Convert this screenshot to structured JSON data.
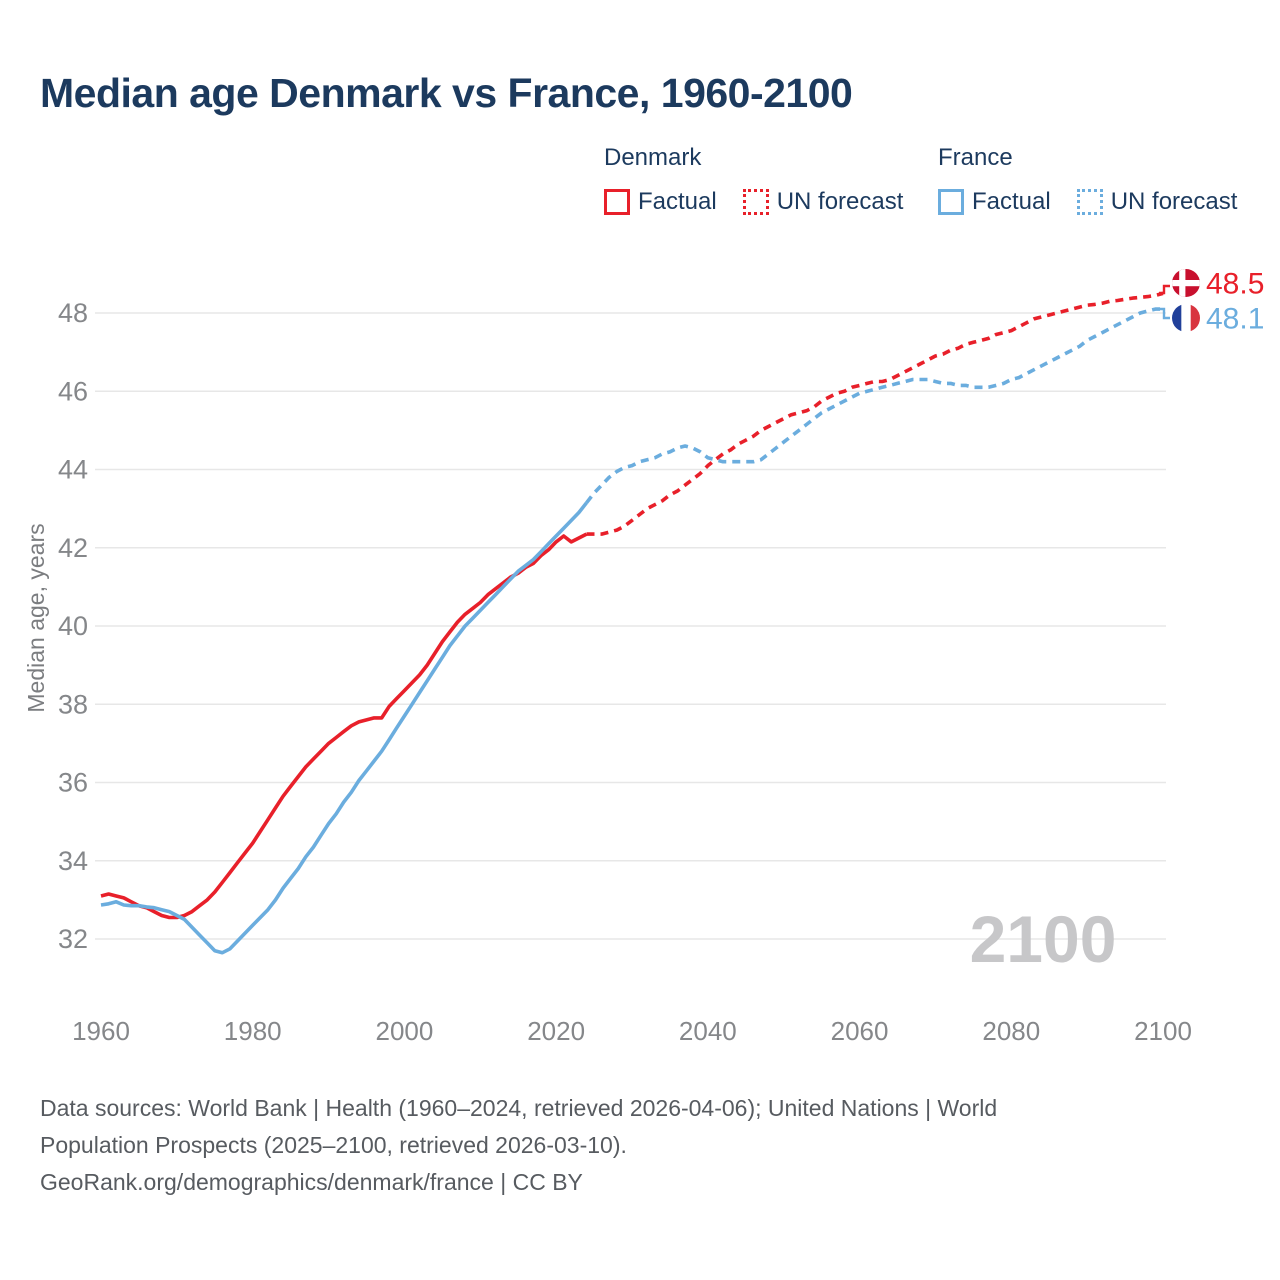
{
  "title": "Median age Denmark vs France, 1960-2100",
  "legend": {
    "groups": [
      {
        "name": "Denmark",
        "color": "#e8202a",
        "items": [
          {
            "label": "Factual",
            "style": "solid"
          },
          {
            "label": "UN forecast",
            "style": "dotted"
          }
        ]
      },
      {
        "name": "France",
        "color": "#6badde",
        "items": [
          {
            "label": "Factual",
            "style": "solid"
          },
          {
            "label": "UN forecast",
            "style": "dotted"
          }
        ]
      }
    ]
  },
  "watermark": "2100",
  "end_labels": [
    {
      "series": "Denmark",
      "value": "48.5",
      "flag": "denmark-flag"
    },
    {
      "series": "France",
      "value": "48.1",
      "flag": "france-flag"
    }
  ],
  "footer": {
    "lines": [
      "Data sources: World Bank | Health (1960–2024, retrieved 2026-04-06); United Nations | World",
      "Population Prospects (2025–2100, retrieved 2026-03-10).",
      "GeoRank.org/demographics/denmark/france | CC BY"
    ]
  },
  "colors": {
    "title_navy": "#1c3a5e",
    "denmark_red": "#e8202a",
    "france_blue": "#6badde",
    "grid_gray": "#e7e7e7",
    "tick_gray": "#85878a",
    "axis_title_gray": "#7b7d80",
    "footer_gray": "#575b60",
    "watermark_gray": "#c7c7c9",
    "flag_dk_red": "#c8102e",
    "flag_fr_blue": "#21409a",
    "flag_fr_red": "#d8343f"
  },
  "chart_data": {
    "type": "line",
    "title": "Median age Denmark vs France, 1960-2100",
    "xlabel": "",
    "ylabel": "Median age, years",
    "x_start": 1960,
    "x_step": 1,
    "xticks": [
      1960,
      1980,
      2000,
      2020,
      2040,
      2060,
      2080,
      2100
    ],
    "yticks": [
      32,
      34,
      36,
      38,
      40,
      42,
      44,
      46,
      48
    ],
    "ylim": [
      30.8,
      49.4
    ],
    "grid": "horizontal-only",
    "forecast_start_year": 2024,
    "legend_position": "top",
    "series": [
      {
        "name": "Denmark",
        "color": "#e8202a",
        "end_label": "48.5",
        "values": [
          33.1,
          33.15,
          33.1,
          33.05,
          32.95,
          32.85,
          32.8,
          32.7,
          32.6,
          32.55,
          32.55,
          32.6,
          32.7,
          32.85,
          33.0,
          33.2,
          33.45,
          33.7,
          33.95,
          34.2,
          34.45,
          34.75,
          35.05,
          35.35,
          35.65,
          35.9,
          36.15,
          36.4,
          36.6,
          36.8,
          37.0,
          37.15,
          37.3,
          37.45,
          37.55,
          37.6,
          37.65,
          37.65,
          37.95,
          38.15,
          38.35,
          38.55,
          38.75,
          39.0,
          39.3,
          39.6,
          39.85,
          40.1,
          40.3,
          40.45,
          40.6,
          40.8,
          40.95,
          41.1,
          41.25,
          41.35,
          41.5,
          41.6,
          41.8,
          41.95,
          42.15,
          42.3,
          42.15,
          42.25,
          42.35,
          42.35,
          42.35,
          42.4,
          42.45,
          42.55,
          42.7,
          42.85,
          43.0,
          43.1,
          43.2,
          43.35,
          43.45,
          43.6,
          43.75,
          43.9,
          44.1,
          44.25,
          44.4,
          44.5,
          44.65,
          44.75,
          44.85,
          45.0,
          45.1,
          45.2,
          45.3,
          45.4,
          45.45,
          45.5,
          45.6,
          45.75,
          45.85,
          45.95,
          46.0,
          46.1,
          46.15,
          46.2,
          46.25,
          46.25,
          46.3,
          46.4,
          46.5,
          46.6,
          46.7,
          46.8,
          46.9,
          46.95,
          47.05,
          47.1,
          47.2,
          47.25,
          47.3,
          47.35,
          47.45,
          47.5,
          47.55,
          47.65,
          47.75,
          47.85,
          47.9,
          47.95,
          48.0,
          48.05,
          48.1,
          48.15,
          48.2,
          48.22,
          48.25,
          48.3,
          48.32,
          48.35,
          48.38,
          48.4,
          48.42,
          48.45,
          48.5
        ]
      },
      {
        "name": "France",
        "color": "#6badde",
        "end_label": "48.1",
        "values": [
          32.87,
          32.9,
          32.95,
          32.87,
          32.85,
          32.85,
          32.82,
          32.8,
          32.75,
          32.7,
          32.6,
          32.5,
          32.3,
          32.1,
          31.9,
          31.7,
          31.65,
          31.75,
          31.95,
          32.15,
          32.35,
          32.55,
          32.75,
          33.0,
          33.3,
          33.55,
          33.8,
          34.1,
          34.35,
          34.65,
          34.95,
          35.2,
          35.5,
          35.75,
          36.05,
          36.3,
          36.55,
          36.8,
          37.1,
          37.4,
          37.7,
          38.0,
          38.3,
          38.6,
          38.9,
          39.2,
          39.5,
          39.75,
          40.0,
          40.2,
          40.4,
          40.6,
          40.8,
          41.0,
          41.2,
          41.4,
          41.55,
          41.7,
          41.9,
          42.1,
          42.3,
          42.5,
          42.7,
          42.9,
          43.15,
          43.4,
          43.6,
          43.8,
          43.95,
          44.05,
          44.1,
          44.2,
          44.25,
          44.3,
          44.4,
          44.45,
          44.55,
          44.6,
          44.55,
          44.45,
          44.3,
          44.25,
          44.2,
          44.2,
          44.2,
          44.2,
          44.2,
          44.25,
          44.4,
          44.55,
          44.7,
          44.85,
          45.0,
          45.15,
          45.3,
          45.45,
          45.55,
          45.65,
          45.75,
          45.85,
          45.95,
          46.0,
          46.05,
          46.1,
          46.15,
          46.2,
          46.25,
          46.3,
          46.3,
          46.3,
          46.25,
          46.2,
          46.2,
          46.15,
          46.15,
          46.1,
          46.1,
          46.1,
          46.15,
          46.2,
          46.3,
          46.35,
          46.45,
          46.55,
          46.65,
          46.75,
          46.85,
          46.95,
          47.05,
          47.15,
          47.3,
          47.4,
          47.5,
          47.6,
          47.7,
          47.8,
          47.9,
          48.0,
          48.05,
          48.1,
          48.1
        ]
      }
    ]
  }
}
